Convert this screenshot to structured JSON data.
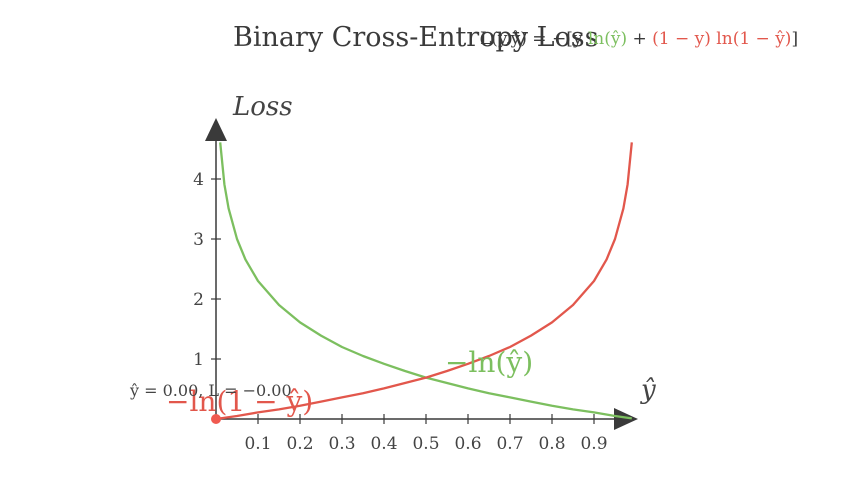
{
  "title": "Binary Cross-Entropy Loss",
  "formula": {
    "prefix": "L(y,ŷ) = −[y ",
    "green_term": "ln(ŷ)",
    "plus": " + ",
    "red_term": "(1 − y) ln(1 − ŷ)",
    "suffix": "]"
  },
  "readout": "ŷ = 0.00, L = −0.00",
  "colors": {
    "green": "#7cbf5f",
    "red": "#e2574c",
    "axis": "#3a3a3a",
    "marker": "#f05a50"
  },
  "chart_data": {
    "type": "line",
    "title": "Binary Cross-Entropy Loss",
    "xlabel": "ŷ",
    "ylabel": "Loss",
    "xlim": [
      0,
      1
    ],
    "ylim": [
      0,
      4.6
    ],
    "x_ticks": [
      0.1,
      0.2,
      0.3,
      0.4,
      0.5,
      0.6,
      0.7,
      0.8,
      0.9
    ],
    "x_tick_labels": [
      "0.1",
      "0.2",
      "0.3",
      "0.4",
      "0.5",
      "0.6",
      "0.7",
      "0.8",
      "0.9"
    ],
    "y_ticks": [
      1,
      2,
      3,
      4
    ],
    "y_tick_labels": [
      "1",
      "2",
      "3",
      "4"
    ],
    "series": [
      {
        "name": "−ln(ŷ)",
        "color": "#7cbf5f",
        "x": [
          0.01,
          0.02,
          0.03,
          0.05,
          0.07,
          0.1,
          0.15,
          0.2,
          0.25,
          0.3,
          0.35,
          0.4,
          0.45,
          0.5,
          0.55,
          0.6,
          0.65,
          0.7,
          0.75,
          0.8,
          0.85,
          0.9,
          0.95,
          0.99
        ],
        "y": [
          4.61,
          3.91,
          3.51,
          3.0,
          2.66,
          2.3,
          1.9,
          1.61,
          1.39,
          1.2,
          1.05,
          0.92,
          0.8,
          0.69,
          0.6,
          0.51,
          0.43,
          0.36,
          0.29,
          0.22,
          0.16,
          0.11,
          0.05,
          0.01
        ]
      },
      {
        "name": "−ln(1 − ŷ)",
        "color": "#e2574c",
        "x": [
          0.0,
          0.05,
          0.1,
          0.15,
          0.2,
          0.25,
          0.3,
          0.35,
          0.4,
          0.45,
          0.5,
          0.55,
          0.6,
          0.65,
          0.7,
          0.75,
          0.8,
          0.85,
          0.9,
          0.93,
          0.95,
          0.97,
          0.98,
          0.99
        ],
        "y": [
          0.0,
          0.05,
          0.11,
          0.16,
          0.22,
          0.29,
          0.36,
          0.43,
          0.51,
          0.6,
          0.69,
          0.8,
          0.92,
          1.05,
          1.2,
          1.39,
          1.61,
          1.9,
          2.3,
          2.66,
          3.0,
          3.51,
          3.91,
          4.61
        ]
      }
    ],
    "marker": {
      "x": 0.0,
      "y": 0.0
    }
  }
}
